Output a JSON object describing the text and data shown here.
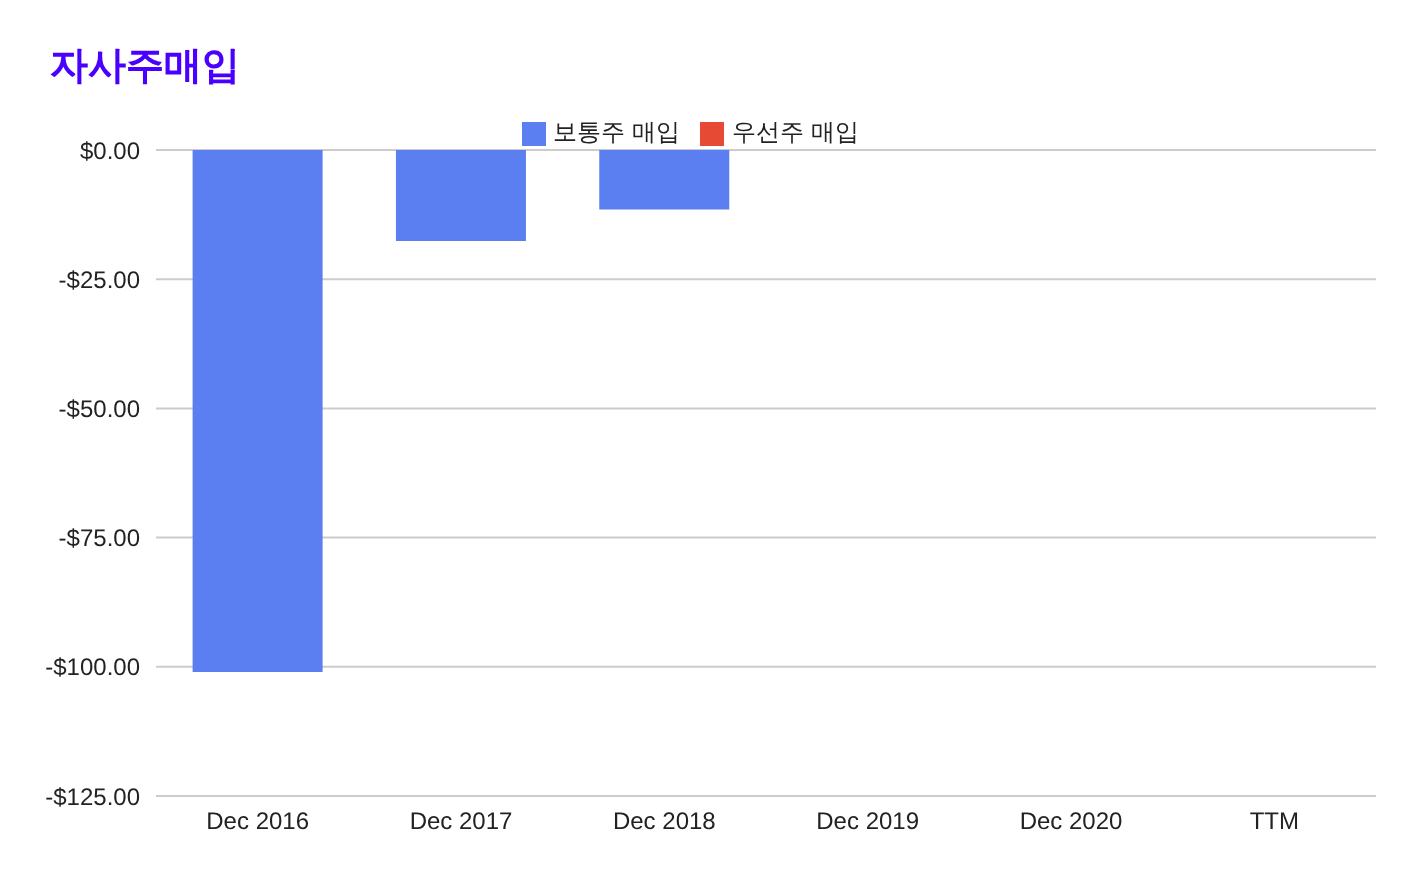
{
  "chart_data": {
    "type": "bar",
    "title": "자사주매입",
    "categories": [
      "Dec 2016",
      "Dec 2017",
      "Dec 2018",
      "Dec 2019",
      "Dec 2020",
      "TTM"
    ],
    "series": [
      {
        "name": "우선주 매입",
        "color": "#e64a35",
        "values": [
          null,
          null,
          null,
          null,
          null,
          null
        ]
      },
      {
        "name": "보통주 매입",
        "color": "#5b7ef0",
        "values": [
          -101,
          -17.6,
          -11.5,
          null,
          null,
          null
        ]
      }
    ],
    "stacked": true,
    "ylim": [
      -125,
      0
    ],
    "yticks": [
      {
        "value": 0,
        "label": "$0.00"
      },
      {
        "value": -25,
        "label": "-$25.00"
      },
      {
        "value": -50,
        "label": "-$50.00"
      },
      {
        "value": -75,
        "label": "-$75.00"
      },
      {
        "value": -100,
        "label": "-$100.00"
      },
      {
        "value": -125,
        "label": "-$125.00"
      }
    ],
    "grid": "y",
    "legend": "top"
  }
}
